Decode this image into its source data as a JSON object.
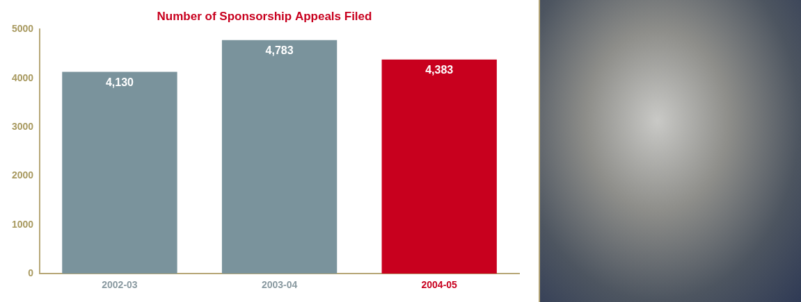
{
  "chart_data": {
    "type": "bar",
    "title": "Number of Sponsorship Appeals Filed",
    "categories": [
      "2002-03",
      "2003-04",
      "2004-05"
    ],
    "values": [
      4130,
      4783,
      4383
    ],
    "value_labels": [
      "4,130",
      "4,783",
      "4,383"
    ],
    "colors": [
      "#7a939c",
      "#7a939c",
      "#c8001e"
    ],
    "ylim": [
      0,
      5000
    ],
    "yticks": [
      0,
      1000,
      2000,
      3000,
      4000,
      5000
    ],
    "grid": false,
    "data_labels": true
  }
}
